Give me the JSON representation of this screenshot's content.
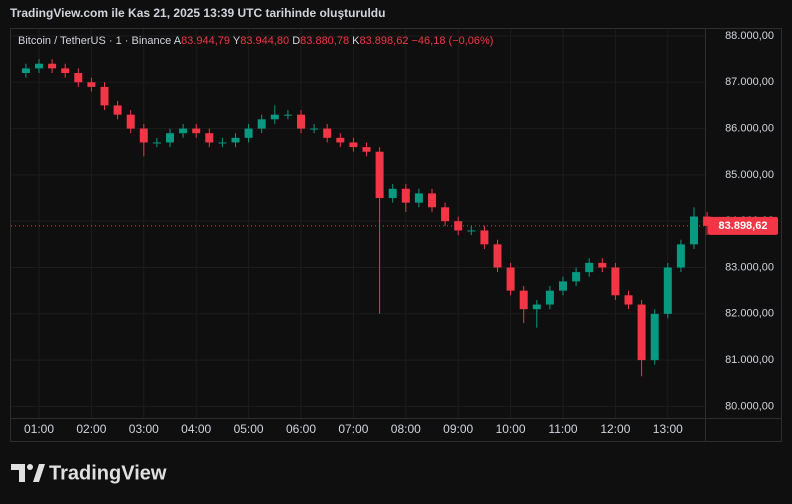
{
  "header": "TradingView.com ile Kas 21, 2025 13:39 UTC tarihinde oluşturuldu",
  "footer": {
    "brand": "TradingView"
  },
  "chart_data": {
    "type": "candlestick",
    "symbol": "Bitcoin / TetherUS · 1 · Binance",
    "ohlc_legend": [
      {
        "key": "A",
        "value": "83.944,79"
      },
      {
        "key": "Y",
        "value": "83.944,80"
      },
      {
        "key": "D",
        "value": "83.880,78"
      },
      {
        "key": "K",
        "value": "83.898,62"
      }
    ],
    "change": "−46,18 (−0,06%)",
    "up_color": "#089981",
    "down_color": "#f23645",
    "grid": true,
    "categories": [
      null,
      "01:00",
      null,
      null,
      null,
      "02:00",
      null,
      null,
      null,
      "03:00",
      null,
      null,
      null,
      "04:00",
      null,
      null,
      null,
      "05:00",
      null,
      null,
      null,
      "06:00",
      null,
      null,
      null,
      "07:00",
      null,
      null,
      null,
      "08:00",
      null,
      null,
      null,
      "09:00",
      null,
      null,
      null,
      "10:00",
      null,
      null,
      null,
      "11:00",
      null,
      null,
      null,
      "12:00",
      null,
      null,
      null,
      "13:00",
      null,
      null,
      null
    ],
    "open": [
      87200,
      87300,
      87400,
      87300,
      87200,
      87000,
      86900,
      86500,
      86300,
      86000,
      85700,
      85700,
      85900,
      86000,
      85900,
      85700,
      85700,
      85800,
      86000,
      86200,
      86300,
      86300,
      86000,
      86000,
      85800,
      85700,
      85600,
      85500,
      84500,
      84700,
      84400,
      84600,
      84300,
      84000,
      83800,
      83800,
      83500,
      83000,
      82500,
      82100,
      82200,
      82500,
      82700,
      82900,
      83100,
      83000,
      82400,
      82200,
      81000,
      82000,
      83000,
      83500,
      84100
    ],
    "high": [
      87400,
      87500,
      87500,
      87400,
      87300,
      87100,
      87000,
      86600,
      86400,
      86100,
      85800,
      86000,
      86100,
      86100,
      86000,
      85800,
      85900,
      86100,
      86300,
      86500,
      86400,
      86400,
      86100,
      86100,
      85900,
      85800,
      85700,
      85600,
      84800,
      84800,
      84700,
      84700,
      84400,
      84100,
      83900,
      83900,
      83600,
      83100,
      82600,
      82300,
      82600,
      82800,
      83000,
      83200,
      83200,
      83100,
      82500,
      82300,
      82100,
      83100,
      83600,
      84300,
      84200
    ],
    "low": [
      87100,
      87200,
      87200,
      87100,
      86900,
      86800,
      86400,
      86200,
      85900,
      85400,
      85600,
      85600,
      85800,
      85800,
      85600,
      85600,
      85600,
      85700,
      85900,
      86100,
      86200,
      85900,
      85900,
      85700,
      85600,
      85500,
      85400,
      82000,
      84400,
      84200,
      84300,
      84200,
      83900,
      83700,
      83700,
      83400,
      82900,
      82400,
      81800,
      81700,
      82100,
      82400,
      82600,
      82800,
      82900,
      82300,
      82100,
      80650,
      80900,
      81900,
      82900,
      83400,
      83700
    ],
    "close": [
      87300,
      87400,
      87300,
      87200,
      87000,
      86900,
      86500,
      86300,
      86000,
      85700,
      85700,
      85900,
      86000,
      85900,
      85700,
      85700,
      85800,
      86000,
      86200,
      86300,
      86300,
      86000,
      86000,
      85800,
      85700,
      85600,
      85500,
      84500,
      84700,
      84400,
      84600,
      84300,
      84000,
      83800,
      83800,
      83500,
      83000,
      82500,
      82100,
      82200,
      82500,
      82700,
      82900,
      83100,
      83000,
      82400,
      82200,
      81000,
      82000,
      83000,
      83500,
      84100,
      83898.62
    ],
    "last_price": {
      "value": 83898.62,
      "label": "83.898,62"
    },
    "ylim": [
      79750,
      88150
    ],
    "yticks": [
      {
        "value": 80000,
        "label": "80.000,00"
      },
      {
        "value": 81000,
        "label": "81.000,00"
      },
      {
        "value": 82000,
        "label": "82.000,00"
      },
      {
        "value": 83000,
        "label": "83.000,00"
      },
      {
        "value": 84000,
        "label": "84.000,00"
      },
      {
        "value": 85000,
        "label": "85.000,00"
      },
      {
        "value": 86000,
        "label": "86.000,00"
      },
      {
        "value": 87000,
        "label": "87.000,00"
      },
      {
        "value": 88000,
        "label": "88.000,00"
      }
    ]
  }
}
